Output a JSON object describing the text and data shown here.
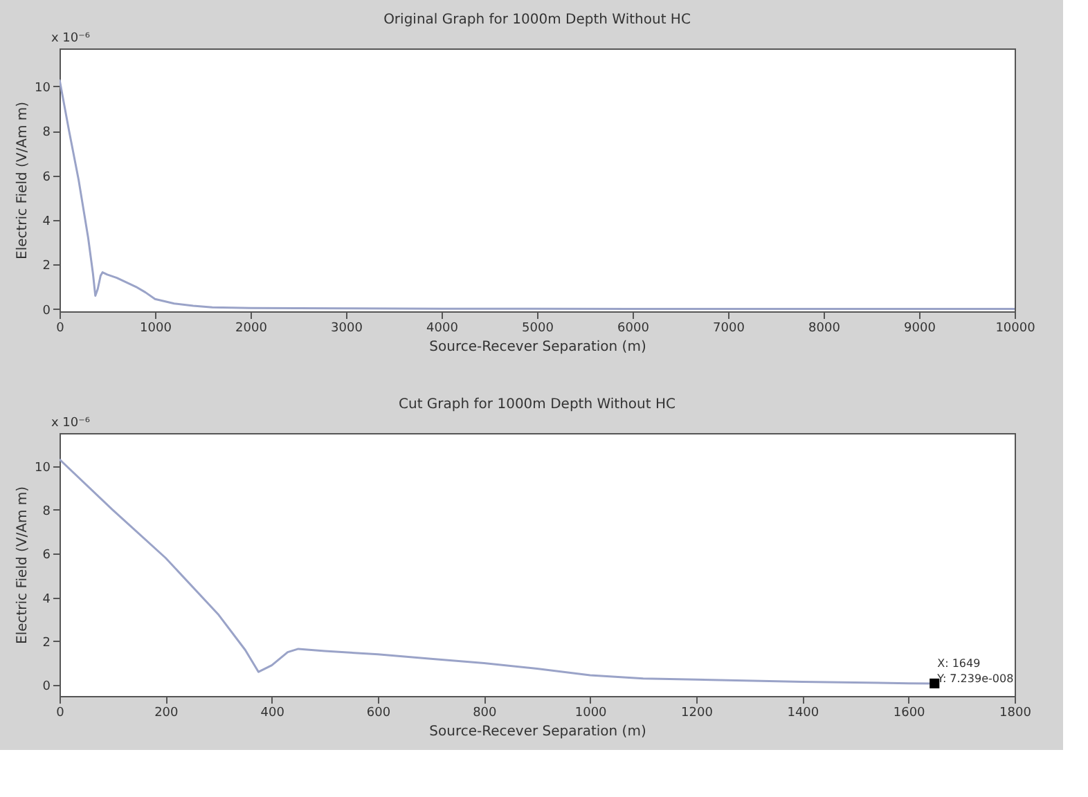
{
  "chart_data": [
    {
      "type": "line",
      "title": "Original Graph for 1000m Depth Without HC",
      "xlabel": "Source-Recever Separation (m)",
      "ylabel": "Electric Field (V/Am m)",
      "xlim": [
        0,
        10000
      ],
      "xticks": [
        0,
        1000,
        2000,
        3000,
        4000,
        5000,
        6000,
        7000,
        8000,
        9000,
        10000
      ],
      "ylim": [
        -0.1,
        11.7
      ],
      "yticks": [
        0,
        2,
        4,
        6,
        8,
        10
      ],
      "grid": false,
      "annotations": [
        "x 10⁻⁶"
      ],
      "series": [
        {
          "color": "#9aa3c8",
          "x": [
            0,
            100,
            200,
            300,
            350,
            375,
            400,
            430,
            450,
            500,
            600,
            700,
            800,
            900,
            1000,
            1200,
            1400,
            1600,
            2000,
            3000,
            4000,
            6000,
            8000,
            10000
          ],
          "values": [
            10.3,
            8.0,
            5.8,
            3.2,
            1.6,
            0.6,
            0.9,
            1.5,
            1.65,
            1.55,
            1.4,
            1.2,
            1.0,
            0.75,
            0.45,
            0.25,
            0.15,
            0.08,
            0.05,
            0.03,
            0.02,
            0.01,
            0.01,
            0.01
          ]
        }
      ]
    },
    {
      "type": "line",
      "title": "Cut Graph for 1000m Depth Without HC",
      "xlabel": "Source-Recever Separation (m)",
      "ylabel": "Electric Field (V/Am m)",
      "xlim": [
        0,
        1800
      ],
      "xticks": [
        0,
        200,
        400,
        600,
        800,
        1000,
        1200,
        1400,
        1600,
        1800
      ],
      "ylim": [
        -0.5,
        11.5
      ],
      "yticks": [
        0,
        2,
        4,
        6,
        8,
        10
      ],
      "grid": false,
      "annotations": [
        "x 10⁻⁶",
        {
          "text": "X: 1649\nY: 7.239e-008",
          "x": 1649,
          "y": 0.072
        }
      ],
      "series": [
        {
          "color": "#9aa3c8",
          "x": [
            0,
            100,
            200,
            300,
            350,
            375,
            400,
            430,
            450,
            500,
            600,
            700,
            800,
            900,
            1000,
            1100,
            1200,
            1400,
            1600,
            1649
          ],
          "values": [
            10.3,
            8.0,
            5.8,
            3.2,
            1.6,
            0.6,
            0.9,
            1.5,
            1.65,
            1.55,
            1.4,
            1.2,
            1.0,
            0.75,
            0.45,
            0.3,
            0.25,
            0.15,
            0.08,
            0.072
          ]
        },
        {
          "type": "scatter",
          "marker": "square",
          "color": "#000000",
          "x": [
            1649
          ],
          "values": [
            0.072
          ]
        }
      ]
    }
  ]
}
